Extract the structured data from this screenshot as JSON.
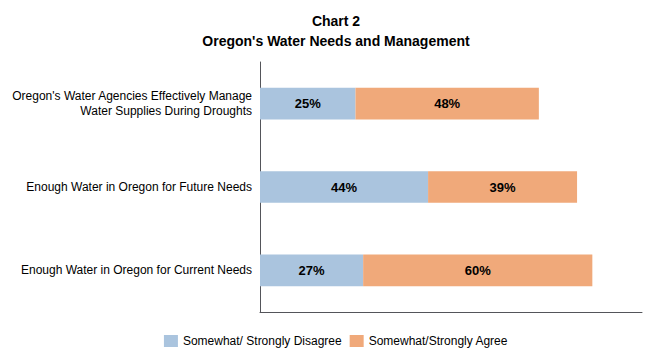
{
  "chart_data": {
    "type": "bar",
    "orientation": "horizontal",
    "stacked": true,
    "title": "Chart 2\nOregon's Water Needs and Management",
    "categories": [
      "Oregon's Water Agencies Effectively Manage\nWater Supplies During Droughts",
      "Enough Water in Oregon for Future Needs",
      "Enough Water in Oregon for Current Needs"
    ],
    "series": [
      {
        "name": "Somewhat/ Strongly Disagree",
        "color": "#aac4de",
        "values": [
          25,
          44,
          27
        ],
        "value_labels": [
          "25%",
          "44%",
          "27%"
        ]
      },
      {
        "name": "Somewhat/Strongly Agree",
        "color": "#f0a97a",
        "values": [
          48,
          39,
          60
        ],
        "value_labels": [
          "48%",
          "39%",
          "60%"
        ]
      }
    ],
    "xlim": [
      0,
      100
    ],
    "data_labels": true,
    "tick_labels": "y",
    "grid": false,
    "legend": "bottom"
  }
}
